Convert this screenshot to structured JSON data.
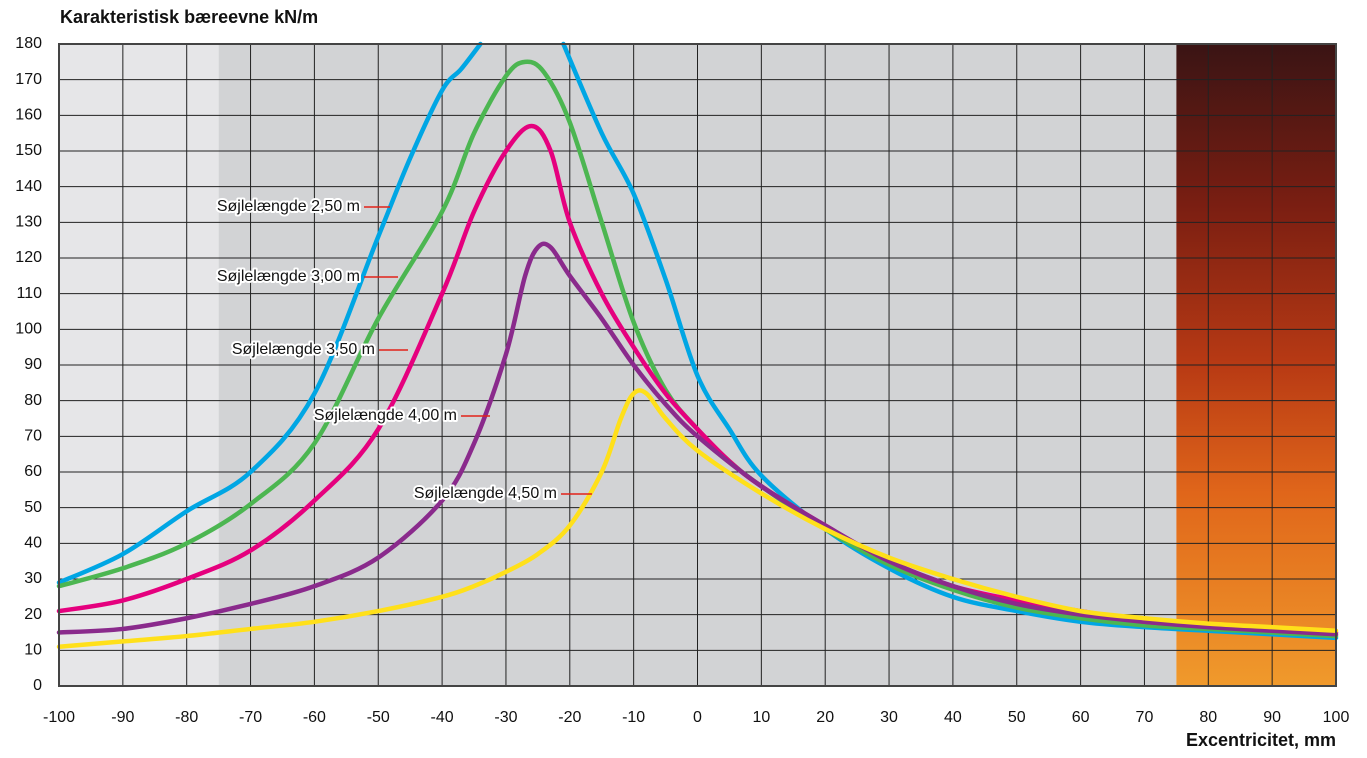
{
  "chart_data": {
    "type": "line",
    "y_axis_title": "Karakteristisk bæreevne kN/m",
    "x_axis_title": "Excentricitet, mm",
    "xlim": [
      -100,
      100
    ],
    "xticks": [
      -100,
      -90,
      -80,
      -70,
      -60,
      -50,
      -40,
      -30,
      -20,
      -10,
      0,
      10,
      20,
      30,
      40,
      50,
      60,
      70,
      80,
      90,
      100
    ],
    "ylim": [
      0,
      180
    ],
    "yticks": [
      0,
      10,
      20,
      30,
      40,
      50,
      60,
      70,
      80,
      90,
      100,
      110,
      120,
      130,
      140,
      150,
      160,
      170,
      180
    ],
    "grid": true,
    "series": [
      {
        "name": "Søjlelængde 2,50 m",
        "color": "#00a6e4",
        "x": [
          -100,
          -90,
          -80,
          -70,
          -60,
          -50,
          -45,
          -40,
          -37,
          -34,
          -27.5,
          -21,
          -15,
          -10,
          -5,
          0,
          5,
          10,
          20,
          30,
          40,
          50,
          60,
          70,
          80,
          90,
          100
        ],
        "values": [
          29,
          37,
          49,
          60,
          82,
          126,
          148,
          167,
          173,
          180,
          null,
          180,
          155,
          138,
          114,
          87,
          72,
          59,
          44,
          33,
          25,
          21,
          18,
          16.5,
          15.5,
          14.5,
          13.5
        ]
      },
      {
        "name": "Søjlelængde 3,00 m",
        "color": "#4cb651",
        "x": [
          -100,
          -90,
          -80,
          -70,
          -60,
          -50,
          -40,
          -35,
          -30,
          -27,
          -24,
          -20,
          -15,
          -10,
          -5,
          0,
          5,
          10,
          20,
          30,
          40,
          50,
          60,
          70,
          80,
          90,
          100
        ],
        "values": [
          28,
          33,
          40,
          51,
          68,
          103,
          133,
          155,
          171,
          175,
          172,
          158,
          130,
          102,
          83,
          72,
          63,
          56,
          44,
          34,
          27,
          22,
          19,
          17,
          16,
          15,
          14
        ]
      },
      {
        "name": "Søjlelængde 3,50 m",
        "color": "#e5007e",
        "x": [
          -100,
          -90,
          -80,
          -70,
          -60,
          -50,
          -40,
          -35,
          -30,
          -26,
          -23,
          -20,
          -15,
          -10,
          -5,
          0,
          5,
          10,
          20,
          30,
          40,
          50,
          60,
          70,
          80,
          90,
          100
        ],
        "values": [
          21,
          24,
          30,
          38,
          52,
          72,
          110,
          133,
          150,
          157,
          150,
          130,
          110,
          95,
          82,
          72,
          63,
          56,
          45,
          35,
          28,
          24,
          21,
          18,
          17,
          16,
          15
        ]
      },
      {
        "name": "Søjlelængde 4,00 m",
        "color": "#8a2a8c",
        "x": [
          -100,
          -90,
          -80,
          -70,
          -60,
          -50,
          -40,
          -35,
          -30,
          -27,
          -25,
          -23,
          -20,
          -15,
          -10,
          -5,
          0,
          10,
          20,
          30,
          40,
          50,
          60,
          70,
          80,
          90,
          100
        ],
        "values": [
          15,
          16,
          19,
          23,
          28,
          36,
          52,
          68,
          93,
          115,
          123,
          123,
          115,
          103,
          90,
          79,
          70,
          56,
          45,
          35,
          28,
          23,
          20,
          18,
          16.5,
          15.5,
          14.5
        ]
      },
      {
        "name": "Søjlelængde 4,50 m",
        "color": "#ffe01a",
        "x": [
          -100,
          -90,
          -80,
          -70,
          -60,
          -50,
          -40,
          -35,
          -30,
          -25,
          -20,
          -15,
          -12,
          -10,
          -8,
          -5,
          0,
          10,
          20,
          30,
          40,
          50,
          60,
          70,
          80,
          90,
          100
        ],
        "values": [
          11,
          12.5,
          14,
          16,
          18,
          21,
          25,
          28,
          32,
          37,
          45,
          60,
          75,
          82,
          82,
          75,
          66,
          54,
          44,
          36,
          30,
          25,
          21,
          19,
          17.5,
          16.5,
          15.5
        ]
      }
    ]
  }
}
